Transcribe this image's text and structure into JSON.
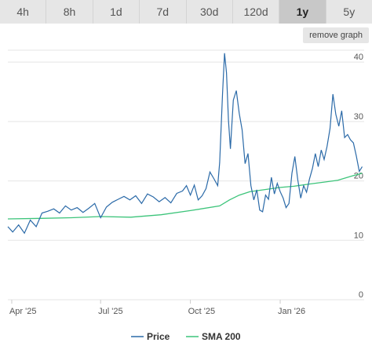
{
  "tabs": [
    {
      "label": "4h",
      "active": false
    },
    {
      "label": "8h",
      "active": false
    },
    {
      "label": "1d",
      "active": false
    },
    {
      "label": "7d",
      "active": false
    },
    {
      "label": "30d",
      "active": false
    },
    {
      "label": "120d",
      "active": false
    },
    {
      "label": "1y",
      "active": true
    },
    {
      "label": "5y",
      "active": false
    }
  ],
  "remove_graph_label": "remove graph",
  "colors": {
    "price": "#2b6aa8",
    "sma": "#3cc47a",
    "grid": "#e5e5e5"
  },
  "chart_data": {
    "type": "line",
    "x_start": "2025-03-28",
    "x_end": "2026-03-28",
    "ylim": [
      0,
      42
    ],
    "yticks": [
      0,
      10,
      20,
      30,
      40
    ],
    "xticks": [
      {
        "label": "Apr '25",
        "date": "2025-04-01"
      },
      {
        "label": "Jul '25",
        "date": "2025-07-01"
      },
      {
        "label": "Oct '25",
        "date": "2025-10-01"
      },
      {
        "label": "Jan '26",
        "date": "2026-01-01"
      }
    ],
    "grid": true,
    "legend_position": "bottom",
    "series": [
      {
        "name": "Price",
        "x": [
          "2025-03-28",
          "2025-04-02",
          "2025-04-08",
          "2025-04-14",
          "2025-04-20",
          "2025-04-26",
          "2025-05-02",
          "2025-05-08",
          "2025-05-14",
          "2025-05-20",
          "2025-05-26",
          "2025-06-01",
          "2025-06-07",
          "2025-06-13",
          "2025-06-19",
          "2025-06-25",
          "2025-07-01",
          "2025-07-07",
          "2025-07-13",
          "2025-07-19",
          "2025-07-25",
          "2025-07-31",
          "2025-08-06",
          "2025-08-12",
          "2025-08-18",
          "2025-08-24",
          "2025-08-30",
          "2025-09-05",
          "2025-09-11",
          "2025-09-17",
          "2025-09-23",
          "2025-09-27",
          "2025-10-01",
          "2025-10-05",
          "2025-10-09",
          "2025-10-13",
          "2025-10-17",
          "2025-10-21",
          "2025-10-25",
          "2025-10-29",
          "2025-10-31",
          "2025-11-03",
          "2025-11-05",
          "2025-11-07",
          "2025-11-09",
          "2025-11-11",
          "2025-11-14",
          "2025-11-17",
          "2025-11-20",
          "2025-11-23",
          "2025-11-26",
          "2025-11-29",
          "2025-12-02",
          "2025-12-05",
          "2025-12-08",
          "2025-12-11",
          "2025-12-14",
          "2025-12-17",
          "2025-12-20",
          "2025-12-23",
          "2025-12-26",
          "2025-12-29",
          "2026-01-01",
          "2026-01-04",
          "2026-01-07",
          "2026-01-10",
          "2026-01-13",
          "2026-01-16",
          "2026-01-19",
          "2026-01-22",
          "2026-01-25",
          "2026-01-28",
          "2026-01-31",
          "2026-02-03",
          "2026-02-06",
          "2026-02-09",
          "2026-02-12",
          "2026-02-15",
          "2026-02-18",
          "2026-02-21",
          "2026-02-24",
          "2026-02-27",
          "2026-03-02",
          "2026-03-05",
          "2026-03-08",
          "2026-03-11",
          "2026-03-14",
          "2026-03-17",
          "2026-03-20",
          "2026-03-23",
          "2026-03-26"
        ],
        "values": [
          12.3,
          11.4,
          12.6,
          11.2,
          13.4,
          12.3,
          14.6,
          14.9,
          15.3,
          14.6,
          15.8,
          15.1,
          15.5,
          14.7,
          15.4,
          16.2,
          13.8,
          15.6,
          16.4,
          16.9,
          17.4,
          16.8,
          17.5,
          16.2,
          17.8,
          17.3,
          16.5,
          17.2,
          16.3,
          17.9,
          18.3,
          19.2,
          17.6,
          19.3,
          16.8,
          17.5,
          18.7,
          21.5,
          20.4,
          19.2,
          23.1,
          34.8,
          41.5,
          38.2,
          30.2,
          25.4,
          33.6,
          35.2,
          31.4,
          28.6,
          22.9,
          24.6,
          19.2,
          16.8,
          18.5,
          15.1,
          14.8,
          17.6,
          16.9,
          20.6,
          17.8,
          19.6,
          18.2,
          17.1,
          15.5,
          16.2,
          21.3,
          24.1,
          20.2,
          17.1,
          19.2,
          18.1,
          20.3,
          22.1,
          24.6,
          22.4,
          25.2,
          23.6,
          25.8,
          28.8,
          34.6,
          31.2,
          29.2,
          31.8,
          27.3,
          27.8,
          26.9,
          26.4,
          24.2,
          21.6,
          22.4
        ]
      },
      {
        "name": "SMA 200",
        "x": [
          "2025-03-28",
          "2025-05-01",
          "2025-06-01",
          "2025-07-01",
          "2025-08-01",
          "2025-09-01",
          "2025-10-01",
          "2025-10-31",
          "2025-11-10",
          "2025-11-20",
          "2025-12-01",
          "2025-12-15",
          "2026-01-01",
          "2026-01-15",
          "2026-02-01",
          "2026-02-15",
          "2026-03-01",
          "2026-03-15",
          "2026-03-26"
        ],
        "values": [
          13.6,
          13.7,
          13.8,
          14.0,
          13.9,
          14.3,
          15.0,
          15.8,
          16.8,
          17.6,
          18.2,
          18.5,
          18.9,
          19.1,
          19.5,
          19.8,
          20.1,
          20.8,
          21.3
        ]
      }
    ]
  }
}
